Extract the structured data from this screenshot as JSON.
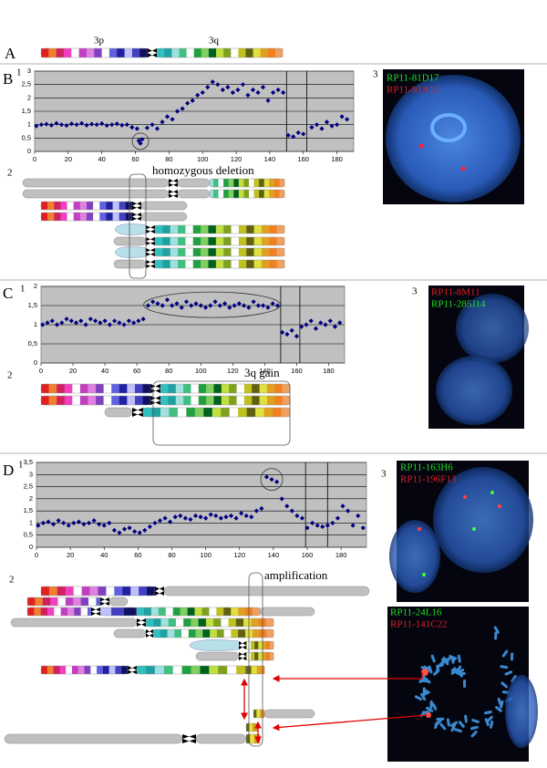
{
  "panel_labels": [
    "A",
    "B",
    "C",
    "D"
  ],
  "sub_labels": [
    "1",
    "2",
    "3"
  ],
  "arm_labels": [
    "3p",
    "3q"
  ],
  "annotations": [
    "homozygous deletion",
    "3q gain",
    "amplification"
  ],
  "probes": {
    "B": [
      "RP11-81D17",
      "RP11-91A15"
    ],
    "C": [
      "RP11-8M11",
      "RP11-285J14"
    ],
    "D_top": [
      "RP11-163H6",
      "RP11-196F13"
    ],
    "D_bottom": [
      "RP11-24L16",
      "RP11-141C22"
    ]
  },
  "chart_data": [
    {
      "type": "scatter",
      "color": "#000080",
      "background": "#c0c0c0",
      "grid": true,
      "x": [
        1,
        4,
        7,
        10,
        13,
        16,
        19,
        22,
        25,
        28,
        31,
        34,
        37,
        40,
        43,
        46,
        49,
        52,
        55,
        58,
        61,
        62,
        63,
        64,
        67,
        70,
        73,
        76,
        79,
        82,
        85,
        88,
        91,
        94,
        97,
        100,
        103,
        106,
        109,
        112,
        115,
        118,
        121,
        124,
        127,
        130,
        133,
        136,
        139,
        142,
        145,
        148,
        151,
        154,
        157,
        160,
        165,
        168,
        171,
        174,
        177,
        180,
        183,
        186
      ],
      "values": [
        0.95,
        1.0,
        1.02,
        0.98,
        1.05,
        1.0,
        0.97,
        1.03,
        1.0,
        1.05,
        0.98,
        1.02,
        1.0,
        1.04,
        0.97,
        1.0,
        1.03,
        0.98,
        1.0,
        0.9,
        0.85,
        0.4,
        0.3,
        0.45,
        0.88,
        1.0,
        0.85,
        1.1,
        1.3,
        1.2,
        1.5,
        1.6,
        1.8,
        1.9,
        2.1,
        2.2,
        2.4,
        2.6,
        2.5,
        2.3,
        2.4,
        2.2,
        2.3,
        2.5,
        2.1,
        2.3,
        2.2,
        2.4,
        1.9,
        2.2,
        2.3,
        2.2,
        0.6,
        0.55,
        0.7,
        0.65,
        0.9,
        1.0,
        0.85,
        1.1,
        0.95,
        1.0,
        1.3,
        1.2
      ],
      "xlim": [
        0,
        190
      ],
      "xticks": [
        0,
        20,
        40,
        60,
        80,
        100,
        120,
        140,
        160,
        180
      ],
      "ylim": [
        0,
        3
      ],
      "yticks": [
        0,
        {
          "value": 0.5,
          "label": "0,5"
        },
        1,
        {
          "value": 1.5,
          "label": "1,5"
        },
        2,
        {
          "value": 2.5,
          "label": "2,5"
        },
        3
      ],
      "vlines": [
        150,
        162
      ]
    },
    {
      "type": "scatter",
      "color": "#000080",
      "background": "#c0c0c0",
      "grid": true,
      "x": [
        1,
        4,
        7,
        10,
        13,
        16,
        19,
        22,
        25,
        28,
        31,
        34,
        37,
        40,
        43,
        46,
        49,
        52,
        55,
        58,
        61,
        64,
        67,
        70,
        73,
        76,
        79,
        82,
        85,
        88,
        91,
        94,
        97,
        100,
        103,
        106,
        109,
        112,
        115,
        118,
        121,
        124,
        127,
        130,
        133,
        136,
        139,
        142,
        145,
        148,
        151,
        154,
        157,
        160,
        163,
        166,
        169,
        172,
        175,
        178,
        181,
        184,
        187
      ],
      "values": [
        1.0,
        1.05,
        1.1,
        1.0,
        1.05,
        1.15,
        1.1,
        1.05,
        1.1,
        1.0,
        1.15,
        1.1,
        1.05,
        1.1,
        1.0,
        1.1,
        1.05,
        1.0,
        1.1,
        1.05,
        1.1,
        1.15,
        1.5,
        1.6,
        1.55,
        1.5,
        1.65,
        1.5,
        1.55,
        1.45,
        1.6,
        1.5,
        1.55,
        1.5,
        1.45,
        1.5,
        1.6,
        1.5,
        1.55,
        1.45,
        1.5,
        1.55,
        1.5,
        1.45,
        1.6,
        1.5,
        1.5,
        1.45,
        1.55,
        1.5,
        0.8,
        0.75,
        0.85,
        0.7,
        0.95,
        1.0,
        1.1,
        0.9,
        1.05,
        1.0,
        1.1,
        0.95,
        1.05
      ],
      "xlim": [
        0,
        190
      ],
      "xticks": [
        0,
        20,
        40,
        60,
        80,
        100,
        120,
        140,
        160,
        180
      ],
      "ylim": [
        0,
        2
      ],
      "yticks": [
        0,
        {
          "value": 0.5,
          "label": "0,5"
        },
        1,
        {
          "value": 1.5,
          "label": "1,5"
        },
        2
      ],
      "vlines": [
        150,
        162
      ]
    },
    {
      "type": "scatter",
      "color": "#000080",
      "background": "#c0c0c0",
      "grid": true,
      "x": [
        1,
        4,
        7,
        10,
        13,
        16,
        19,
        22,
        25,
        28,
        31,
        34,
        37,
        40,
        43,
        46,
        49,
        52,
        55,
        58,
        61,
        64,
        67,
        70,
        73,
        76,
        79,
        82,
        85,
        88,
        91,
        94,
        97,
        100,
        103,
        106,
        109,
        112,
        115,
        118,
        121,
        124,
        127,
        130,
        133,
        136,
        139,
        142,
        145,
        148,
        151,
        154,
        157,
        160,
        163,
        166,
        169,
        172,
        175,
        178,
        181,
        184,
        187,
        190,
        193
      ],
      "values": [
        0.9,
        1.0,
        1.05,
        0.95,
        1.1,
        1.0,
        0.9,
        1.0,
        1.05,
        0.95,
        1.0,
        1.1,
        0.95,
        0.9,
        1.0,
        0.7,
        0.6,
        0.75,
        0.8,
        0.65,
        0.6,
        0.7,
        0.85,
        1.0,
        1.1,
        1.2,
        1.05,
        1.25,
        1.3,
        1.2,
        1.15,
        1.3,
        1.25,
        1.2,
        1.35,
        1.3,
        1.2,
        1.25,
        1.3,
        1.2,
        1.4,
        1.3,
        1.25,
        1.5,
        1.6,
        2.9,
        2.8,
        2.7,
        2.0,
        1.7,
        1.5,
        1.3,
        1.2,
        0.8,
        1.0,
        0.9,
        0.85,
        0.9,
        1.0,
        1.2,
        1.7,
        1.5,
        0.9,
        1.3,
        0.8
      ],
      "xlim": [
        0,
        195
      ],
      "xticks": [
        0,
        20,
        40,
        60,
        80,
        100,
        120,
        140,
        160,
        180
      ],
      "ylim": [
        0,
        3.5
      ],
      "yticks": [
        0,
        {
          "value": 0.5,
          "label": "0,5"
        },
        1,
        {
          "value": 1.5,
          "label": "1,5"
        },
        2,
        {
          "value": 2.5,
          "label": "2,5"
        },
        3,
        {
          "value": 3.5,
          "label": "3,5"
        }
      ],
      "vlines": [
        159,
        172
      ]
    }
  ]
}
